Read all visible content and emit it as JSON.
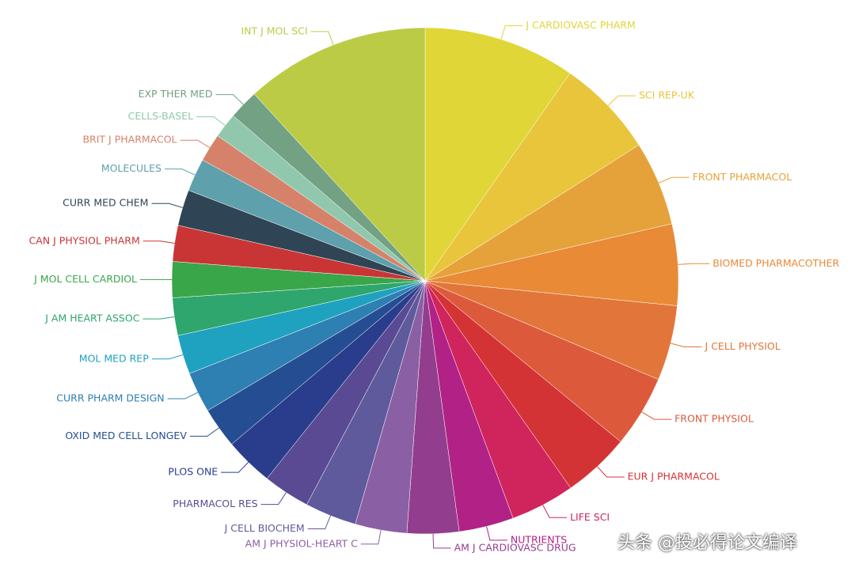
{
  "chart_data": {
    "type": "pie",
    "categories": [
      "J CARDIOVASC PHARM",
      "SCI REP-UK",
      "FRONT PHARMACOL",
      "BIOMED PHARMACOTHER",
      "J CELL PHYSIOL",
      "FRONT PHYSIOL",
      "EUR J PHARMACOL",
      "LIFE SCI",
      "NUTRIENTS",
      "AM J CARDIOVASC DRUG",
      "AM J PHYSIOL-HEART C",
      "J CELL BIOCHEM",
      "PHARMACOL RES",
      "PLOS ONE",
      "OXID MED CELL LONGEV",
      "CURR PHARM DESIGN",
      "MOL MED REP",
      "J AM HEART ASSOC",
      "J MOL CELL CARDIOL",
      "CAN J PHYSIOL PHARM",
      "CURR MED CHEM",
      "MOLECULES",
      "BRIT J PHARMACOL",
      "CELLS-BASEL",
      "EXP THER MED",
      "INT J MOL SCI"
    ],
    "values": [
      9.7,
      6.3,
      5.4,
      5.2,
      4.8,
      4.6,
      4.3,
      4.1,
      3.5,
      3.3,
      3.3,
      3.3,
      3.0,
      3.1,
      2.6,
      2.6,
      2.5,
      2.4,
      2.3,
      2.3,
      2.3,
      2.1,
      1.8,
      1.6,
      1.9,
      11.8
    ],
    "colors": [
      "#e0d637",
      "#e9c53c",
      "#e6a23a",
      "#e88a36",
      "#e2763a",
      "#dc5a3b",
      "#d43336",
      "#d0245c",
      "#b22185",
      "#933d8f",
      "#8b5fa3",
      "#5e5a9c",
      "#5a4a93",
      "#2a3d8c",
      "#254e92",
      "#2e7fb2",
      "#1fa2c0",
      "#2ea66d",
      "#3aa64a",
      "#c93535",
      "#2f4454",
      "#5ea0ab",
      "#d6826a",
      "#91c8ad",
      "#72a184",
      "#bccb45"
    ]
  },
  "watermark": "头条 @投必得论文编译"
}
